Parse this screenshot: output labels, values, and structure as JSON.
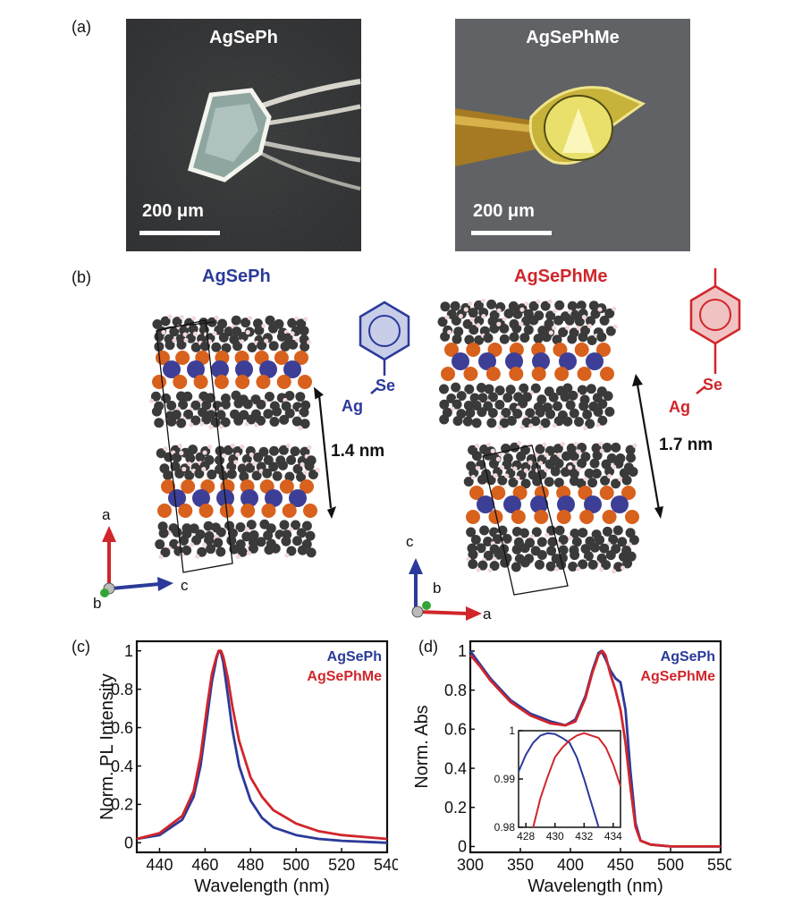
{
  "figure": {
    "panel_labels": {
      "a": "(a)",
      "b": "(b)",
      "c": "(c)",
      "d": "(d)"
    },
    "panel_a": {
      "left_photo": {
        "title": "AgSePh",
        "scale_bar": "200 μm"
      },
      "right_photo": {
        "title": "AgSePhMe",
        "scale_bar": "200 μm"
      }
    },
    "panel_b": {
      "left": {
        "title": "AgSePh",
        "spacing": "1.4 nm",
        "axes": {
          "up": "a",
          "right": "c",
          "into": "b"
        },
        "molecule": {
          "ag": "Ag",
          "se": "Se"
        }
      },
      "right": {
        "title": "AgSePhMe",
        "spacing": "1.7 nm",
        "axes": {
          "up": "c",
          "right": "a",
          "into": "b"
        },
        "molecule": {
          "ag": "Ag",
          "se": "Se"
        }
      }
    },
    "colors": {
      "agseph": "#2b3a9a",
      "agsephme": "#d0262b",
      "silver": "#3d3f96",
      "selenium": "#d8611d",
      "carbon": "#3a3a3a"
    }
  },
  "chart_data": [
    {
      "panel": "c",
      "type": "line",
      "xlabel": "Wavelength (nm)",
      "ylabel": "Norm. PL Intensity",
      "xlim": [
        430,
        540
      ],
      "ylim": [
        -0.05,
        1.05
      ],
      "xticks": [
        "440",
        "460",
        "480",
        "500",
        "520",
        "540"
      ],
      "yticks": [
        "0",
        "0.2",
        "0.4",
        "0.6",
        "0.8",
        "1"
      ],
      "legend": "top-right",
      "series": [
        {
          "name": "AgSePh",
          "color": "#2b3a9a",
          "x": [
            430,
            440,
            450,
            455,
            458,
            461,
            463,
            465,
            466,
            467,
            468,
            470,
            472,
            475,
            480,
            485,
            490,
            500,
            510,
            520,
            540
          ],
          "y": [
            0.02,
            0.04,
            0.12,
            0.24,
            0.4,
            0.66,
            0.84,
            0.96,
            1.0,
            0.99,
            0.94,
            0.77,
            0.59,
            0.4,
            0.22,
            0.13,
            0.08,
            0.04,
            0.02,
            0.01,
            0.0
          ]
        },
        {
          "name": "AgSePhMe",
          "color": "#d0262b",
          "x": [
            430,
            440,
            450,
            455,
            458,
            461,
            463,
            465,
            466,
            467,
            468,
            470,
            472,
            475,
            480,
            485,
            490,
            500,
            510,
            520,
            540
          ],
          "y": [
            0.02,
            0.05,
            0.14,
            0.27,
            0.45,
            0.72,
            0.88,
            0.97,
            1.0,
            1.0,
            0.97,
            0.86,
            0.71,
            0.53,
            0.34,
            0.24,
            0.17,
            0.1,
            0.06,
            0.04,
            0.02
          ]
        }
      ]
    },
    {
      "panel": "d",
      "type": "line",
      "xlabel": "Wavelength (nm)",
      "ylabel": "Norm. Abs",
      "xlim": [
        300,
        550
      ],
      "ylim": [
        -0.03,
        1.05
      ],
      "xticks": [
        "300",
        "350",
        "400",
        "450",
        "500",
        "550"
      ],
      "yticks": [
        "0",
        "0.2",
        "0.4",
        "0.6",
        "0.8",
        "1"
      ],
      "legend": "top-right",
      "series": [
        {
          "name": "AgSePh",
          "color": "#2b3a9a",
          "x": [
            300,
            310,
            320,
            340,
            360,
            380,
            395,
            405,
            415,
            422,
            428,
            431,
            435,
            440,
            445,
            450,
            455,
            460,
            465,
            470,
            480,
            500,
            550
          ],
          "y": [
            1.0,
            0.93,
            0.86,
            0.75,
            0.68,
            0.64,
            0.62,
            0.65,
            0.77,
            0.9,
            0.99,
            1.0,
            0.96,
            0.9,
            0.86,
            0.84,
            0.7,
            0.38,
            0.12,
            0.03,
            0.01,
            0.0,
            0.0
          ]
        },
        {
          "name": "AgSePhMe",
          "color": "#d0262b",
          "x": [
            300,
            310,
            320,
            340,
            360,
            380,
            395,
            405,
            415,
            422,
            428,
            432,
            435,
            440,
            445,
            450,
            455,
            460,
            465,
            470,
            480,
            500,
            550
          ],
          "y": [
            0.98,
            0.92,
            0.85,
            0.74,
            0.67,
            0.63,
            0.62,
            0.64,
            0.76,
            0.89,
            0.98,
            1.0,
            0.98,
            0.88,
            0.8,
            0.7,
            0.53,
            0.3,
            0.1,
            0.03,
            0.01,
            0.0,
            0.0
          ]
        }
      ]
    },
    {
      "panel": "d-inset",
      "type": "line",
      "xlim": [
        427.5,
        434.5
      ],
      "ylim": [
        0.98,
        1.0
      ],
      "xticks": [
        "428",
        "430",
        "432",
        "434"
      ],
      "yticks": [
        "0.98",
        "0.99",
        "1"
      ],
      "series": [
        {
          "name": "AgSePh",
          "color": "#2b3a9a",
          "x": [
            427.5,
            428,
            428.5,
            429,
            429.5,
            430,
            430.5,
            431,
            431.5,
            432,
            432.5,
            433
          ],
          "y": [
            0.9915,
            0.995,
            0.9975,
            0.999,
            0.9995,
            0.9993,
            0.9985,
            0.9975,
            0.9945,
            0.99,
            0.985,
            0.98
          ]
        },
        {
          "name": "AgSePhMe",
          "color": "#d0262b",
          "x": [
            428.5,
            429,
            429.5,
            430,
            430.5,
            431,
            431.5,
            432,
            432.5,
            433,
            433.5,
            434,
            434.5
          ],
          "y": [
            0.98,
            0.986,
            0.9905,
            0.9945,
            0.9965,
            0.998,
            0.999,
            0.9995,
            0.999,
            0.9985,
            0.9965,
            0.993,
            0.9885
          ]
        }
      ]
    }
  ]
}
